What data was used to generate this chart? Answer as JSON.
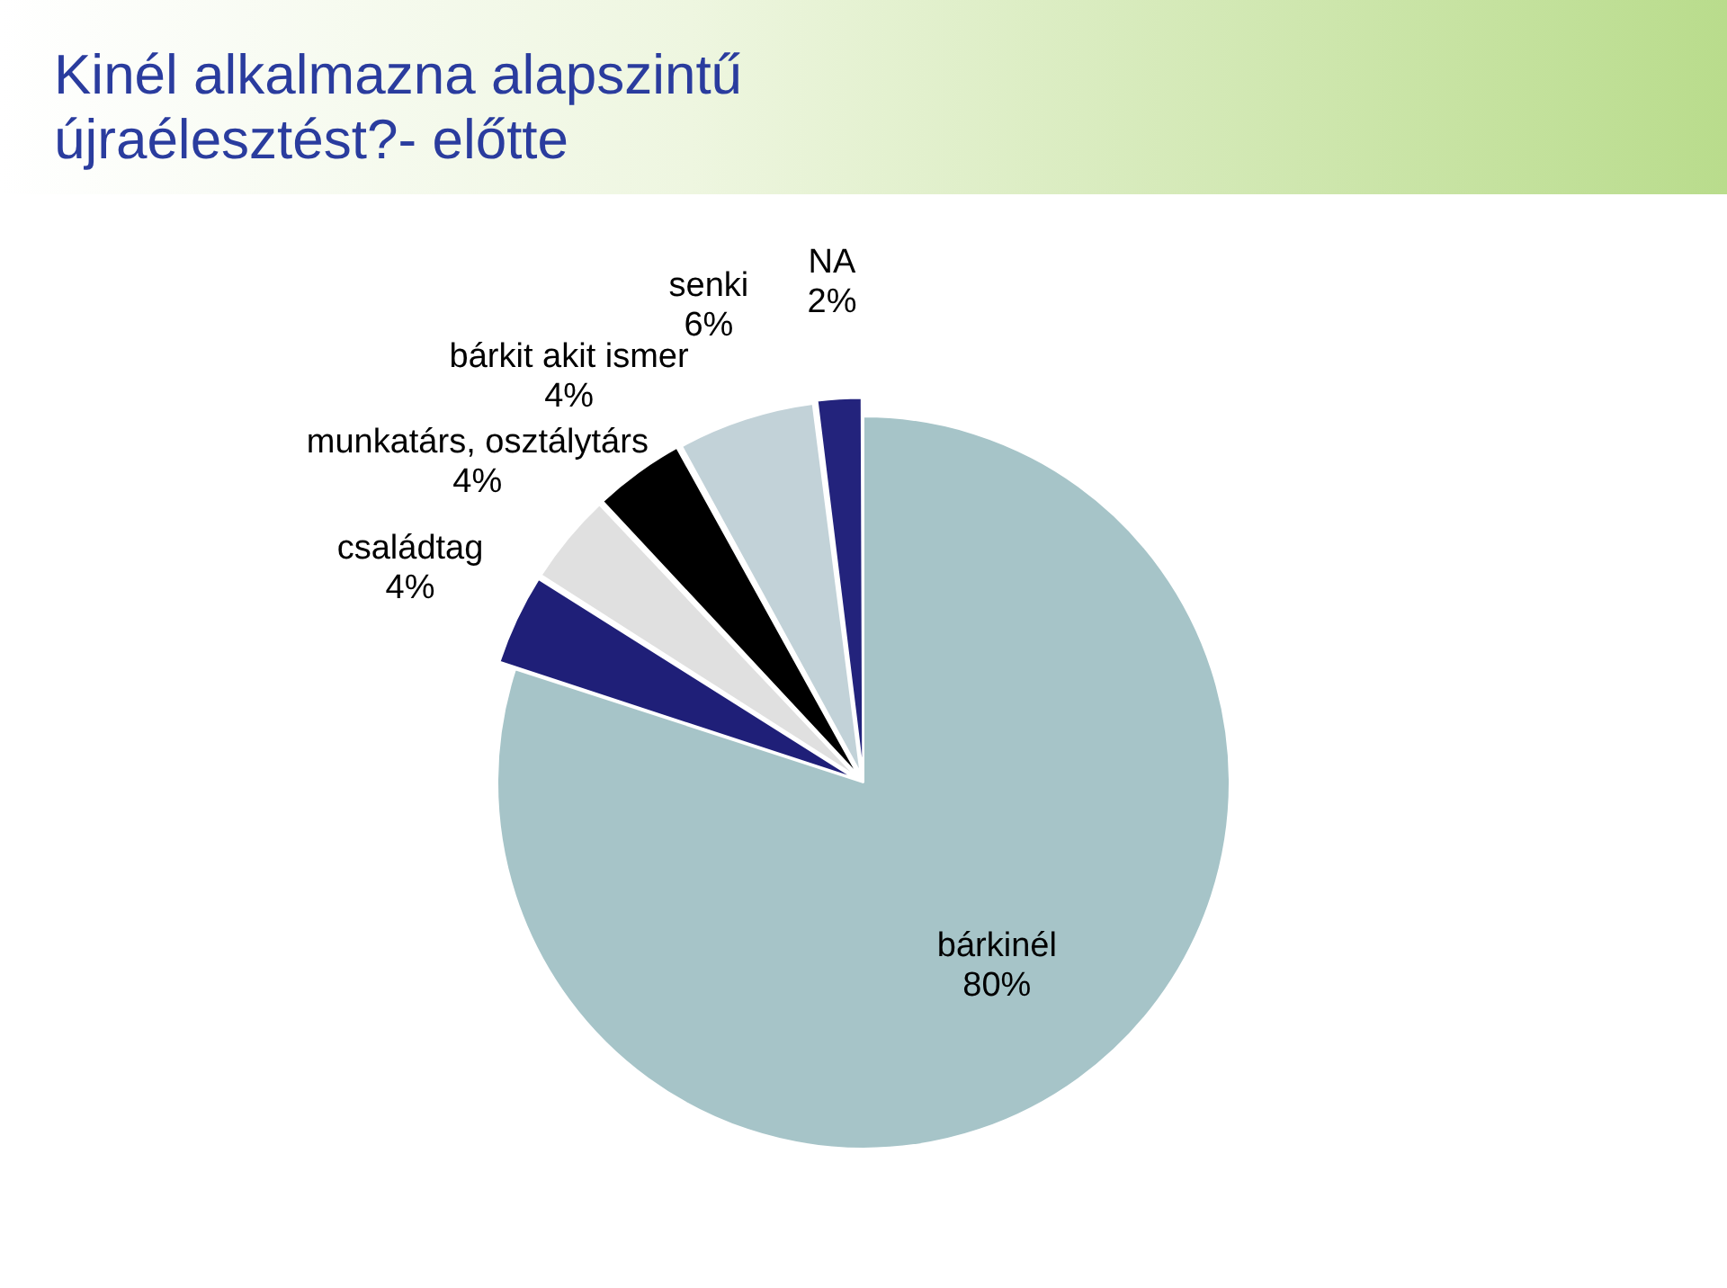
{
  "chart_data": {
    "type": "pie",
    "title": "Kinél alkalmazna alapszintű újraélesztést?- előtte",
    "categories": [
      "bárkinél",
      "családtag",
      "munkatárs, osztálytárs",
      "bárkit akit ismer",
      "senki",
      "NA"
    ],
    "values": [
      80,
      4,
      4,
      4,
      6,
      2
    ],
    "value_labels": [
      "80%",
      "4%",
      "4%",
      "4%",
      "6%",
      "2%"
    ],
    "colors": [
      "#a6c4c8",
      "#1f1f78",
      "#e0e0e0",
      "#000000",
      "#c2d2d8",
      "#23237c"
    ],
    "legend": false
  }
}
